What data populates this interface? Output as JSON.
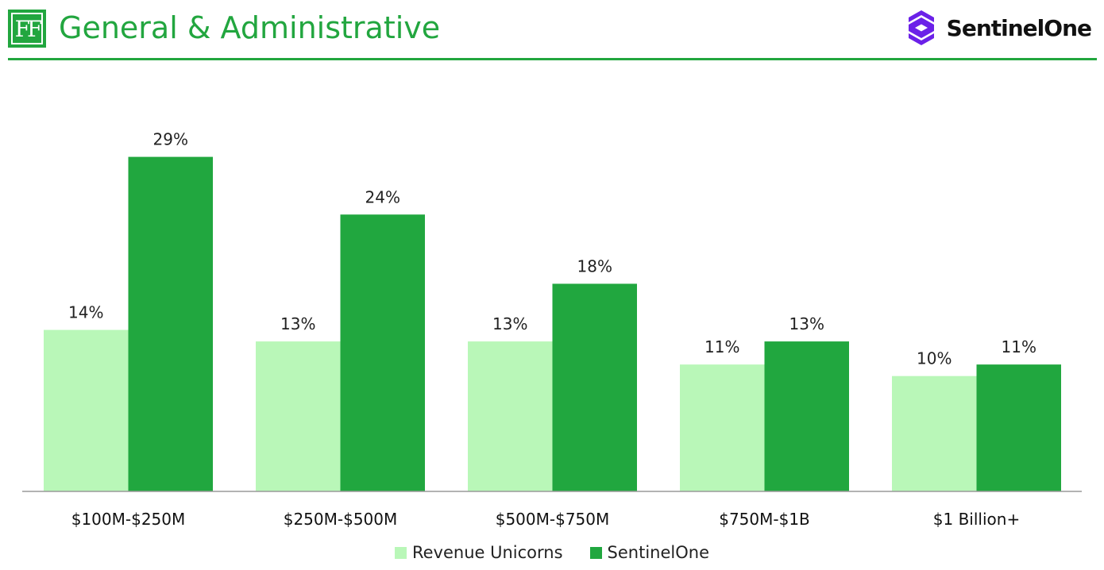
{
  "header": {
    "title": "General & Administrative",
    "logo_text": "FF",
    "brand_name": "SentinelOne"
  },
  "colors": {
    "accent": "#22a63f",
    "series_light": "#b9f7b8",
    "series_dark": "#21a73f",
    "brand_purple": "#6b21e8"
  },
  "chart_data": {
    "type": "bar",
    "title": "General & Administrative",
    "xlabel": "",
    "ylabel": "",
    "ylim": [
      0,
      32
    ],
    "grid": false,
    "legend": "bottom",
    "categories": [
      "$100M-$250M",
      "$250M-$500M",
      "$500M-$750M",
      "$750M-$1B",
      "$1 Billion+"
    ],
    "series": [
      {
        "name": "Revenue Unicorns",
        "values": [
          14,
          13,
          13,
          11,
          10
        ],
        "labels": [
          "14%",
          "13%",
          "13%",
          "11%",
          "10%"
        ]
      },
      {
        "name": "SentinelOne",
        "values": [
          29,
          24,
          18,
          13,
          11
        ],
        "labels": [
          "29%",
          "24%",
          "18%",
          "13%",
          "11%"
        ]
      }
    ]
  }
}
